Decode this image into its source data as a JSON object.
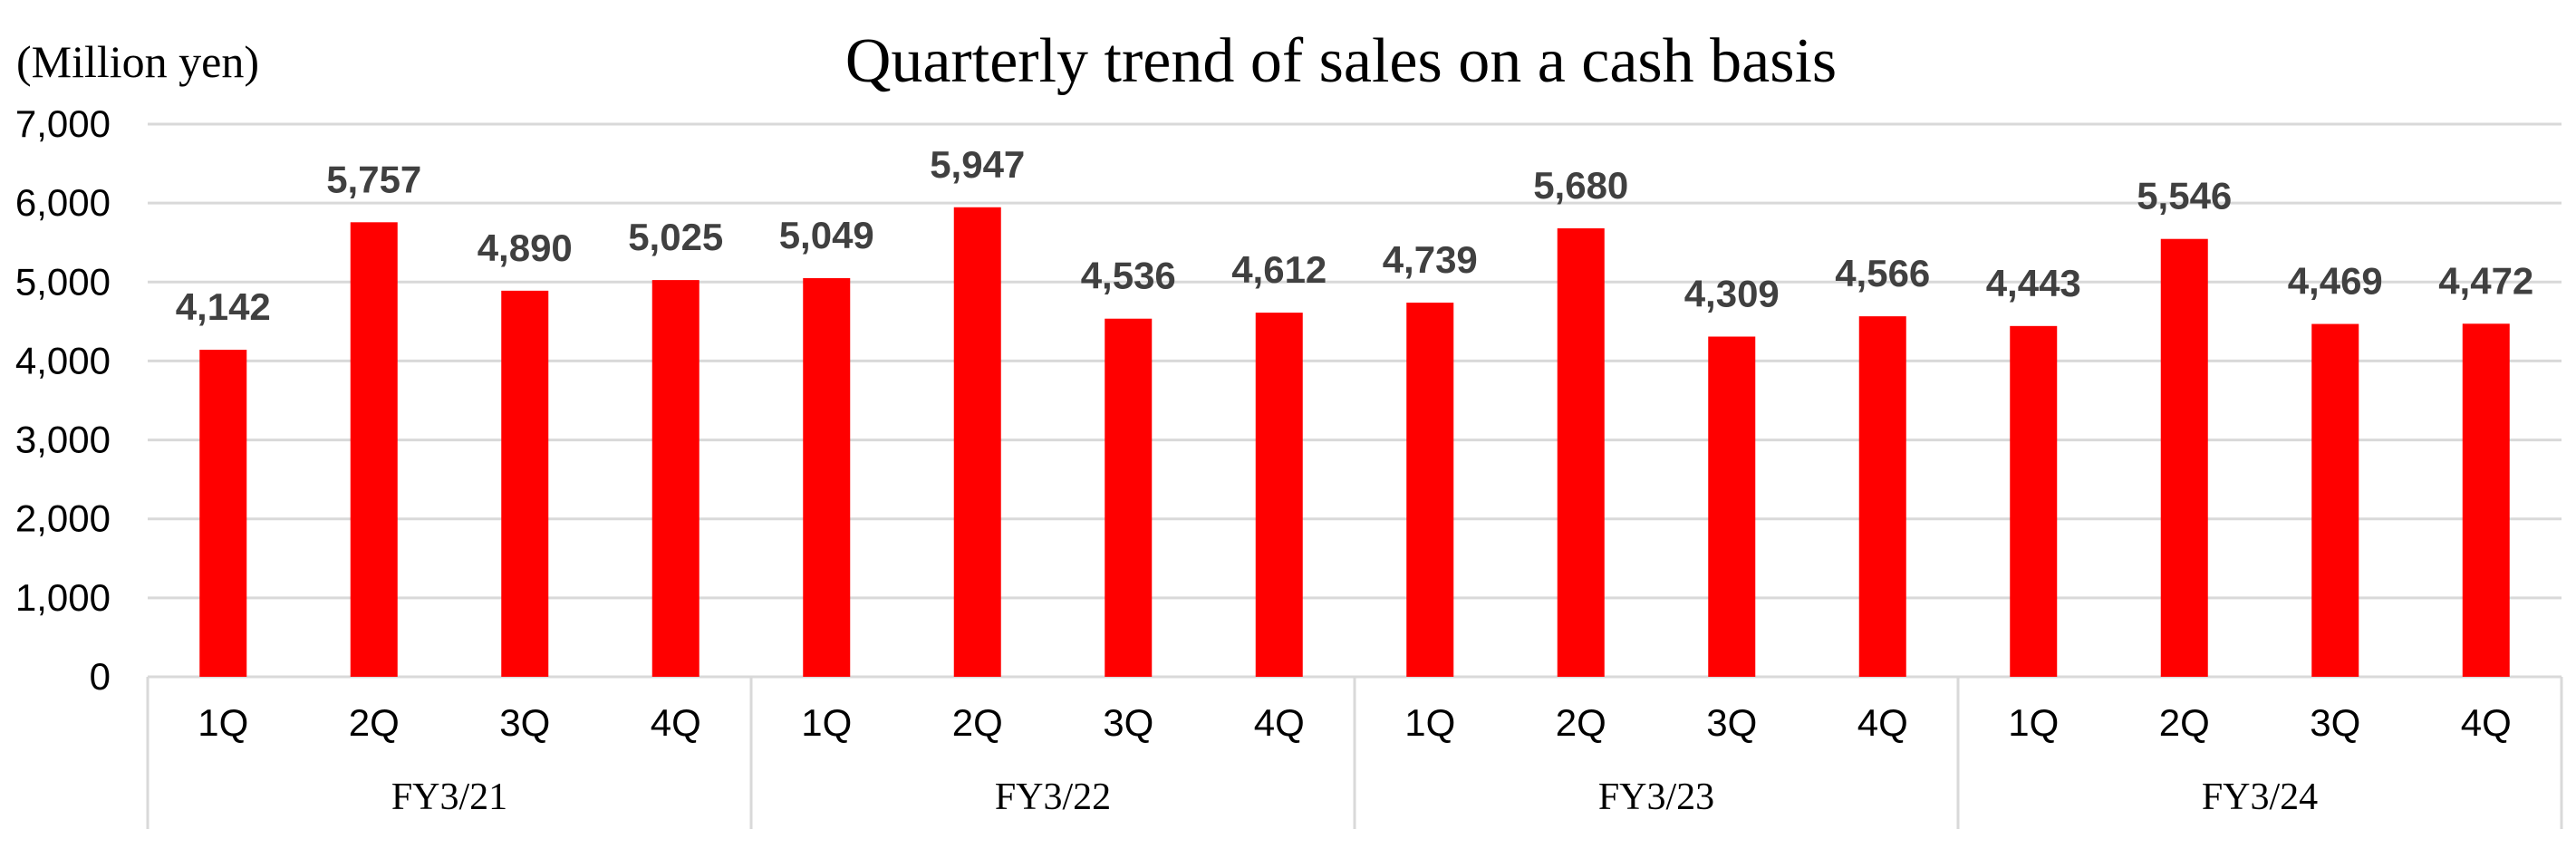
{
  "chart_data": {
    "type": "bar",
    "title": "Quarterly trend of sales on a cash basis",
    "unit_label": "(Million yen)",
    "xlabel": "",
    "ylabel": "",
    "ylim": [
      0,
      7000
    ],
    "y_ticks": [
      "0",
      "1,000",
      "2,000",
      "3,000",
      "4,000",
      "5,000",
      "6,000",
      "7,000"
    ],
    "grid": true,
    "bar_color": "#ff0000",
    "data_label_color": "#404040",
    "groups": [
      {
        "label": "FY3/21",
        "categories": [
          "1Q",
          "2Q",
          "3Q",
          "4Q"
        ],
        "values": [
          4142,
          5757,
          4890,
          5025
        ],
        "value_labels": [
          "4,142",
          "5,757",
          "4,890",
          "5,025"
        ]
      },
      {
        "label": "FY3/22",
        "categories": [
          "1Q",
          "2Q",
          "3Q",
          "4Q"
        ],
        "values": [
          5049,
          5947,
          4536,
          4612
        ],
        "value_labels": [
          "5,049",
          "5,947",
          "4,536",
          "4,612"
        ]
      },
      {
        "label": "FY3/23",
        "categories": [
          "1Q",
          "2Q",
          "3Q",
          "4Q"
        ],
        "values": [
          4739,
          5680,
          4309,
          4566
        ],
        "value_labels": [
          "4,739",
          "5,680",
          "4,309",
          "4,566"
        ]
      },
      {
        "label": "FY3/24",
        "categories": [
          "1Q",
          "2Q",
          "3Q",
          "4Q"
        ],
        "values": [
          4443,
          5546,
          4469,
          4472
        ],
        "value_labels": [
          "4,443",
          "5,546",
          "4,469",
          "4,472"
        ]
      }
    ]
  }
}
